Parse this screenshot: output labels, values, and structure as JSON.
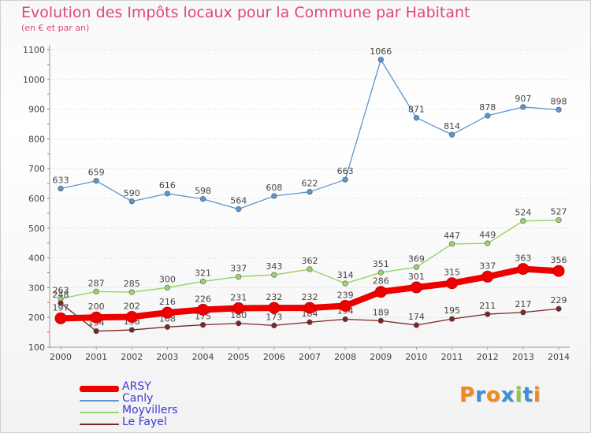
{
  "title": "Evolution des Impôts locaux pour la Commune par Habitant",
  "subtitle": "(en € et par an)",
  "logo": "Proxiti",
  "colors": {
    "title": "#e0457b",
    "axis_text": "#444444",
    "legend_text": "#3a3ad8",
    "logo_letters": [
      "#f08a1c",
      "#3f8fd8",
      "#f08a1c",
      "#3f8fd8",
      "#8cc63e",
      "#3f8fd8",
      "#f08a1c"
    ]
  },
  "chart_data": {
    "type": "line",
    "categories": [
      "2000",
      "2001",
      "2002",
      "2003",
      "2004",
      "2005",
      "2006",
      "2007",
      "2008",
      "2009",
      "2010",
      "2011",
      "2012",
      "2013",
      "2014"
    ],
    "ylim": [
      100,
      1100
    ],
    "yticks": [
      100,
      200,
      300,
      400,
      500,
      600,
      700,
      800,
      900,
      1000,
      1100
    ],
    "grid": "horizontal",
    "legend_position": "bottom-left",
    "series": [
      {
        "name": "Canly",
        "color": "#5b96cf",
        "values": [
          633,
          659,
          590,
          616,
          598,
          564,
          608,
          622,
          663,
          1066,
          871,
          814,
          878,
          907,
          898
        ]
      },
      {
        "name": "Moyvillers",
        "color": "#9bd46c",
        "values": [
          263,
          287,
          285,
          300,
          321,
          337,
          343,
          362,
          314,
          351,
          369,
          447,
          449,
          524,
          527
        ]
      },
      {
        "name": "Le Fayel",
        "color": "#7b2626",
        "values": [
          248,
          154,
          158,
          168,
          175,
          180,
          173,
          184,
          194,
          189,
          174,
          195,
          211,
          217,
          229
        ]
      },
      {
        "name": "ARSY",
        "color": "#ee0000",
        "values": [
          197,
          200,
          202,
          216,
          226,
          231,
          232,
          232,
          239,
          286,
          301,
          315,
          337,
          363,
          356
        ]
      }
    ],
    "legend_order": [
      "ARSY",
      "Canly",
      "Moyvillers",
      "Le Fayel"
    ]
  }
}
